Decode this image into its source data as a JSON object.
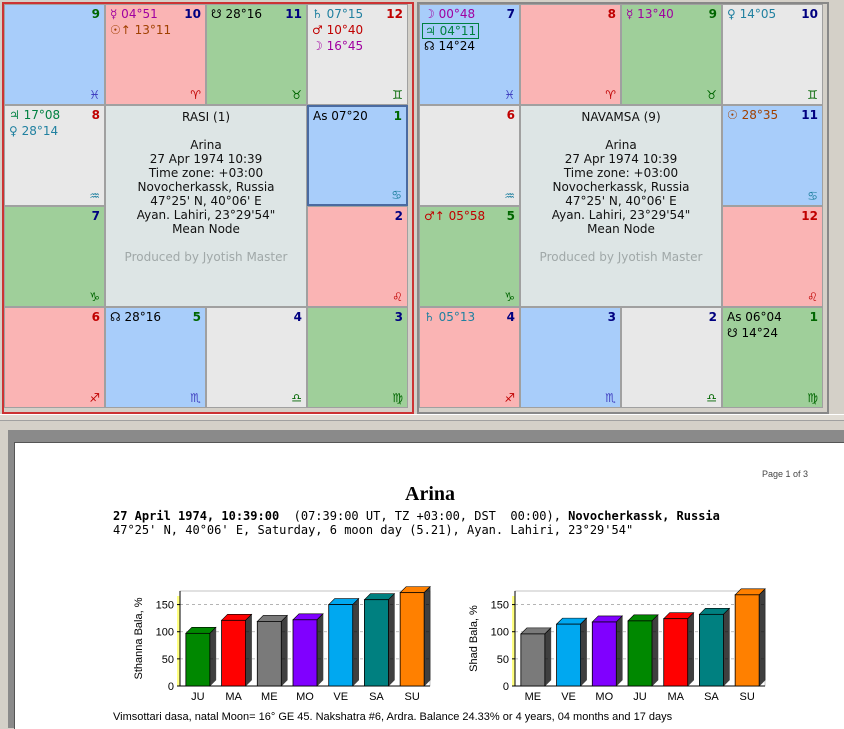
{
  "rasi": {
    "title": "RASI (1)",
    "info": [
      "Arina",
      "27 Apr 1974 10:39",
      "Time zone: +03:00",
      "Novocherkassk, Russia",
      "47°25' N, 40°06' E",
      "Ayan. Lahiri, 23°29'54\"",
      "Mean Node"
    ],
    "produced": "Produced by Jyotish Master",
    "cells": [
      {
        "pos": "r0c0",
        "color": "c-blue",
        "house": "9",
        "house_color": "#006600",
        "sign": "♓",
        "sign_color": "#4040c0",
        "planets": []
      },
      {
        "pos": "r0c1",
        "color": "c-pink",
        "house": "10",
        "house_color": "#000080",
        "sign": "♈",
        "sign_color": "#c00000",
        "planets": [
          {
            "text": "☿ 04°51",
            "color": "#a000a0"
          },
          {
            "text": "☉↑ 13°11",
            "color": "#a04000"
          }
        ]
      },
      {
        "pos": "r0c2",
        "color": "c-green",
        "house": "11",
        "house_color": "#000080",
        "sign": "♉",
        "sign_color": "#006600",
        "planets": [
          {
            "text": "☋ 28°16",
            "color": "#000000"
          }
        ]
      },
      {
        "pos": "r0c3",
        "color": "c-gray",
        "house": "12",
        "house_color": "#c00000",
        "sign": "♊",
        "sign_color": "#006600",
        "planets": [
          {
            "text": "♄ 07°15",
            "color": "#2080a0"
          },
          {
            "text": "♂ 10°40",
            "color": "#c00000"
          },
          {
            "text": "☽ 16°45",
            "color": "#a000a0"
          }
        ]
      },
      {
        "pos": "r1c0",
        "color": "c-gray",
        "house": "8",
        "house_color": "#c00000",
        "sign": "♒",
        "sign_color": "#2080a0",
        "planets": [
          {
            "text": "♃ 17°08",
            "color": "#008040"
          },
          {
            "text": "♀ 28°14",
            "color": "#2080a0"
          }
        ]
      },
      {
        "pos": "r1c3",
        "color": "c-blue",
        "house": "1",
        "house_color": "#006600",
        "sign": "♋",
        "sign_color": "#2080a0",
        "sel": true,
        "planets": [
          {
            "text": "As 07°20",
            "color": "#000000"
          }
        ]
      },
      {
        "pos": "r2c0",
        "color": "c-green",
        "house": "7",
        "house_color": "#000080",
        "sign": "♑",
        "sign_color": "#006600",
        "planets": []
      },
      {
        "pos": "r2c3",
        "color": "c-pink",
        "house": "2",
        "house_color": "#000080",
        "sign": "♌",
        "sign_color": "#c00000",
        "planets": []
      },
      {
        "pos": "r3c0",
        "color": "c-pink",
        "house": "6",
        "house_color": "#c00000",
        "sign": "♐",
        "sign_color": "#c00000",
        "planets": []
      },
      {
        "pos": "r3c1",
        "color": "c-blue",
        "house": "5",
        "house_color": "#006600",
        "sign": "♏",
        "sign_color": "#4040c0",
        "planets": [
          {
            "text": "☊ 28°16",
            "color": "#000000"
          }
        ]
      },
      {
        "pos": "r3c2",
        "color": "c-gray",
        "house": "4",
        "house_color": "#000080",
        "sign": "♎",
        "sign_color": "#006600",
        "planets": []
      },
      {
        "pos": "r3c3",
        "color": "c-green",
        "house": "3",
        "house_color": "#000080",
        "sign": "♍",
        "sign_color": "#006600",
        "planets": []
      }
    ]
  },
  "navamsa": {
    "title": "NAVAMSA (9)",
    "info": [
      "Arina",
      "27 Apr 1974 10:39",
      "Time zone: +03:00",
      "Novocherkassk, Russia",
      "47°25' N, 40°06' E",
      "Ayan. Lahiri, 23°29'54\"",
      "Mean Node"
    ],
    "produced": "Produced by Jyotish Master",
    "cells": [
      {
        "pos": "r0c0",
        "color": "c-blue",
        "house": "7",
        "house_color": "#000080",
        "sign": "♓",
        "sign_color": "#4040c0",
        "planets": [
          {
            "text": "☽ 00°48",
            "color": "#a000a0"
          },
          {
            "text": "♃ 04°11",
            "color": "#008040",
            "boxed": true
          },
          {
            "text": "☊ 14°24",
            "color": "#000000"
          }
        ]
      },
      {
        "pos": "r0c1",
        "color": "c-pink",
        "house": "8",
        "house_color": "#c00000",
        "sign": "♈",
        "sign_color": "#c00000",
        "planets": []
      },
      {
        "pos": "r0c2",
        "color": "c-green",
        "house": "9",
        "house_color": "#006600",
        "sign": "♉",
        "sign_color": "#006600",
        "planets": [
          {
            "text": "☿ 13°40",
            "color": "#a000a0"
          }
        ]
      },
      {
        "pos": "r0c3",
        "color": "c-gray",
        "house": "10",
        "house_color": "#000080",
        "sign": "♊",
        "sign_color": "#006600",
        "planets": [
          {
            "text": "♀ 14°05",
            "color": "#2080a0"
          }
        ]
      },
      {
        "pos": "r1c0",
        "color": "c-gray",
        "house": "6",
        "house_color": "#c00000",
        "sign": "♒",
        "sign_color": "#2080a0",
        "planets": []
      },
      {
        "pos": "r1c3",
        "color": "c-blue",
        "house": "11",
        "house_color": "#000080",
        "sign": "♋",
        "sign_color": "#2080a0",
        "planets": [
          {
            "text": "☉ 28°35",
            "color": "#a04000"
          }
        ]
      },
      {
        "pos": "r2c0",
        "color": "c-green",
        "house": "5",
        "house_color": "#006600",
        "sign": "♑",
        "sign_color": "#006600",
        "planets": [
          {
            "text": "♂↑ 05°58",
            "color": "#c00000"
          }
        ]
      },
      {
        "pos": "r2c3",
        "color": "c-pink",
        "house": "12",
        "house_color": "#c00000",
        "sign": "♌",
        "sign_color": "#c00000",
        "planets": []
      },
      {
        "pos": "r3c0",
        "color": "c-pink",
        "house": "4",
        "house_color": "#000080",
        "sign": "♐",
        "sign_color": "#c00000",
        "planets": [
          {
            "text": "♄ 05°13",
            "color": "#2080a0"
          }
        ]
      },
      {
        "pos": "r3c1",
        "color": "c-blue",
        "house": "3",
        "house_color": "#000080",
        "sign": "♏",
        "sign_color": "#4040c0",
        "planets": []
      },
      {
        "pos": "r3c2",
        "color": "c-gray",
        "house": "2",
        "house_color": "#000080",
        "sign": "♎",
        "sign_color": "#006600",
        "planets": []
      },
      {
        "pos": "r3c3",
        "color": "c-green",
        "house": "1",
        "house_color": "#006600",
        "sign": "♍",
        "sign_color": "#006600",
        "planets": [
          {
            "text": "As 06°04",
            "color": "#000000"
          },
          {
            "text": "☋ 14°24",
            "color": "#000000"
          }
        ]
      }
    ]
  },
  "document": {
    "page_label": "Page 1 of 3",
    "title": "Arina",
    "line1_bold_date": "27 April 1974, 10:39:00",
    "line1_mid": "  (07:39:00 UT, TZ +03:00, DST  00:00), ",
    "line1_bold_place": "Novocherkassk, Russia",
    "line2": "47°25' N, 40°06' E, Saturday, 6 moon day (5.21), Ayan. Lahiri, 23°29'54\"",
    "dasa": "Vimsottari dasa, natal Moon= 16° GE 45. Nakshatra #6, Ardra. Balance 24.33% or 4 years, 04 months and 17 days"
  },
  "chart_data": [
    {
      "type": "bar",
      "ylabel": "Sthanna Bala, %",
      "categories": [
        "JU",
        "MA",
        "ME",
        "MO",
        "VE",
        "SA",
        "SU"
      ],
      "values": [
        97,
        121,
        119,
        122,
        150,
        159,
        172
      ],
      "colors": [
        "#008800",
        "#ff0000",
        "#7a7a7a",
        "#8000ff",
        "#00a8f0",
        "#008080",
        "#ff8000"
      ],
      "ylim": [
        0,
        175
      ],
      "yticks": [
        0,
        50,
        100,
        150
      ],
      "grid": true
    },
    {
      "type": "bar",
      "ylabel": "Shad Bala, %",
      "categories": [
        "ME",
        "VE",
        "MO",
        "JU",
        "MA",
        "SA",
        "SU"
      ],
      "values": [
        96,
        114,
        118,
        120,
        124,
        132,
        168
      ],
      "colors": [
        "#7a7a7a",
        "#00a8f0",
        "#8000ff",
        "#008800",
        "#ff0000",
        "#008080",
        "#ff8000"
      ],
      "ylim": [
        0,
        175
      ],
      "yticks": [
        0,
        50,
        100,
        150
      ],
      "grid": true
    }
  ]
}
